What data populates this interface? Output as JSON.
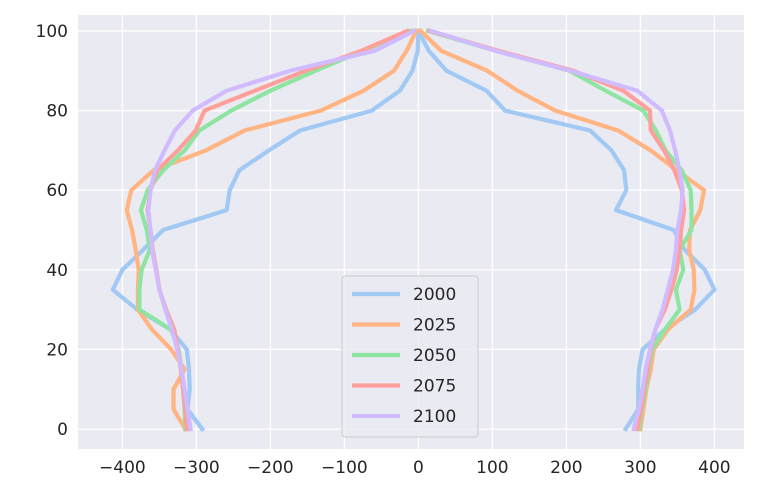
{
  "chart_data": {
    "type": "line",
    "title": "",
    "xlabel": "",
    "ylabel": "",
    "xlim": [
      -460,
      440
    ],
    "ylim": [
      -5,
      104
    ],
    "xticks": [
      -400,
      -300,
      -200,
      -100,
      0,
      100,
      200,
      300,
      400
    ],
    "xtick_labels": [
      "−400",
      "−300",
      "−200",
      "−100",
      "0",
      "100",
      "200",
      "300",
      "400"
    ],
    "yticks": [
      0,
      20,
      40,
      60,
      80,
      100
    ],
    "ytick_labels": [
      "0",
      "20",
      "40",
      "60",
      "80",
      "100"
    ],
    "grid": true,
    "legend_position": "lower center",
    "y": [
      0,
      5,
      10,
      15,
      20,
      25,
      30,
      35,
      40,
      45,
      50,
      55,
      60,
      65,
      70,
      75,
      80,
      85,
      90,
      95,
      100
    ],
    "series": [
      {
        "name": "2000",
        "color": "#a1c9f4",
        "left": [
          -292,
          -312,
          -309,
          -310,
          -313,
          -335,
          -380,
          -413,
          -400,
          -372,
          -345,
          -259,
          -255,
          -242,
          -202,
          -160,
          -63,
          -25,
          -8,
          -1,
          0
        ],
        "right": [
          280,
          297,
          297,
          298,
          303,
          333,
          374,
          400,
          387,
          360,
          345,
          267,
          281,
          278,
          261,
          232,
          117,
          92,
          38,
          14,
          0
        ]
      },
      {
        "name": "2025",
        "color": "#ffb482",
        "left": [
          -315,
          -331,
          -331,
          -316,
          -334,
          -360,
          -379,
          -379,
          -378,
          -382,
          -387,
          -394,
          -388,
          -358,
          -287,
          -235,
          -132,
          -74,
          -33,
          -16,
          -3
        ],
        "right": [
          300,
          304,
          308,
          314,
          318,
          337,
          368,
          373,
          372,
          366,
          367,
          381,
          386,
          349,
          314,
          270,
          185,
          134,
          93,
          31,
          3
        ]
      },
      {
        "name": "2050",
        "color": "#8de5a1",
        "left": [
          -315,
          -316,
          -318,
          -320,
          -324,
          -334,
          -377,
          -377,
          -374,
          -363,
          -367,
          -375,
          -366,
          -345,
          -316,
          -296,
          -253,
          -200,
          -139,
          -75,
          -10
        ],
        "right": [
          298,
          302,
          307,
          311,
          316,
          333,
          353,
          348,
          358,
          353,
          369,
          369,
          368,
          356,
          334,
          321,
          304,
          253,
          204,
          105,
          13
        ]
      },
      {
        "name": "2075",
        "color": "#ff9f9b",
        "left": [
          -313,
          -315,
          -318,
          -321,
          -325,
          -330,
          -341,
          -350,
          -354,
          -359,
          -362,
          -366,
          -362,
          -353,
          -325,
          -301,
          -289,
          -221,
          -152,
          -77,
          -15
        ],
        "right": [
          296,
          301,
          305,
          310,
          314,
          320,
          333,
          342,
          349,
          353,
          355,
          359,
          356,
          346,
          332,
          314,
          313,
          277,
          209,
          108,
          15
        ]
      },
      {
        "name": "2100",
        "color": "#d0bbff",
        "left": [
          -308,
          -312,
          -316,
          -320,
          -326,
          -333,
          -342,
          -350,
          -355,
          -360,
          -362,
          -365,
          -362,
          -356,
          -343,
          -329,
          -305,
          -259,
          -173,
          -59,
          -6
        ],
        "right": [
          291,
          298,
          303,
          307,
          313,
          320,
          330,
          337,
          344,
          348,
          350,
          355,
          357,
          353,
          347,
          340,
          329,
          296,
          205,
          104,
          17
        ]
      }
    ]
  }
}
